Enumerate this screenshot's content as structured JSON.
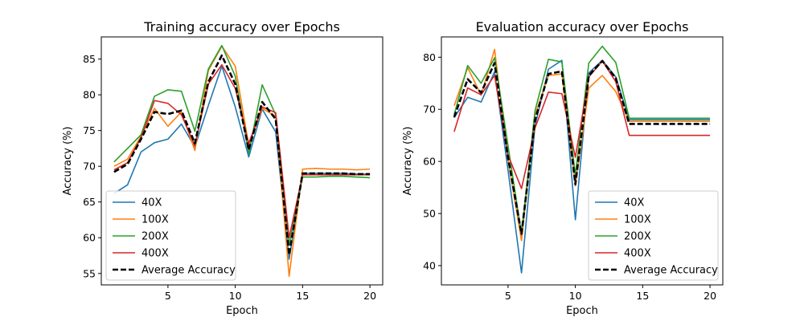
{
  "chart_data": [
    {
      "type": "line",
      "title": "Training accuracy over Epochs",
      "xlabel": "Epoch",
      "ylabel": "Accuracy (%)",
      "xlim": [
        0.05,
        20.95
      ],
      "ylim": [
        53.4,
        88.1
      ],
      "xticks": [
        5,
        10,
        15,
        20
      ],
      "yticks": [
        55,
        60,
        65,
        70,
        75,
        80,
        85
      ],
      "grid": false,
      "legend": "lower-left",
      "x": [
        1,
        2,
        3,
        4,
        5,
        6,
        7,
        8,
        9,
        10,
        11,
        12,
        13,
        14,
        15,
        16,
        17,
        18,
        19,
        20
      ],
      "series": [
        {
          "name": "40X",
          "color": "#1f77b4",
          "dashed": false,
          "values": [
            66.2,
            67.4,
            72.0,
            73.3,
            73.8,
            75.9,
            72.7,
            78.5,
            84.0,
            78.3,
            71.3,
            78.0,
            74.8,
            57.0,
            69.0,
            69.0,
            69.0,
            69.0,
            68.9,
            68.9
          ]
        },
        {
          "name": "100X",
          "color": "#ff7f0e",
          "dashed": false,
          "values": [
            70.0,
            71.0,
            74.2,
            78.1,
            75.6,
            77.6,
            72.2,
            83.4,
            86.8,
            84.0,
            72.9,
            78.1,
            77.0,
            54.6,
            69.6,
            69.7,
            69.6,
            69.6,
            69.5,
            69.6
          ]
        },
        {
          "name": "200X",
          "color": "#2ca02c",
          "dashed": false,
          "values": [
            70.6,
            72.5,
            74.4,
            79.8,
            80.7,
            80.5,
            74.9,
            83.6,
            86.9,
            82.6,
            71.8,
            81.4,
            77.2,
            59.0,
            68.5,
            68.5,
            68.6,
            68.6,
            68.5,
            68.4
          ]
        },
        {
          "name": "400X",
          "color": "#d62728",
          "dashed": false,
          "values": [
            69.5,
            70.5,
            74.0,
            79.2,
            78.8,
            77.2,
            72.9,
            81.5,
            84.2,
            80.9,
            73.2,
            78.3,
            77.5,
            60.0,
            68.8,
            68.8,
            68.8,
            68.8,
            68.8,
            68.8
          ]
        },
        {
          "name": "Average Accuracy",
          "color": "#000000",
          "dashed": true,
          "values": [
            69.2,
            70.3,
            73.8,
            77.6,
            77.3,
            77.8,
            73.2,
            81.8,
            85.5,
            81.5,
            72.3,
            79.0,
            76.6,
            57.6,
            69.0,
            69.0,
            69.0,
            69.0,
            68.9,
            68.9
          ]
        }
      ]
    },
    {
      "type": "line",
      "title": "Evaluation accuracy over Epochs",
      "xlabel": "Epoch",
      "ylabel": "Accuracy (%)",
      "xlim": [
        0.05,
        20.95
      ],
      "ylim": [
        36.3,
        83.9
      ],
      "xticks": [
        5,
        10,
        15,
        20
      ],
      "yticks": [
        40,
        50,
        60,
        70,
        80
      ],
      "grid": false,
      "legend": "lower-right",
      "x": [
        1,
        2,
        3,
        4,
        5,
        6,
        7,
        8,
        9,
        10,
        11,
        12,
        13,
        14,
        15,
        16,
        17,
        18,
        19,
        20
      ],
      "series": [
        {
          "name": "40X",
          "color": "#1f77b4",
          "dashed": false,
          "values": [
            68.4,
            72.3,
            71.4,
            77.2,
            58.3,
            38.6,
            66.8,
            77.7,
            79.4,
            48.8,
            77.0,
            79.4,
            76.2,
            68.0,
            68.0,
            68.0,
            68.0,
            68.0,
            68.0,
            68.0
          ]
        },
        {
          "name": "100X",
          "color": "#ff7f0e",
          "dashed": false,
          "values": [
            70.7,
            78.0,
            72.7,
            81.5,
            60.4,
            44.8,
            68.9,
            76.5,
            76.8,
            55.3,
            74.1,
            76.5,
            73.4,
            67.7,
            67.7,
            67.7,
            67.7,
            67.7,
            67.7,
            67.7
          ]
        },
        {
          "name": "200X",
          "color": "#2ca02c",
          "dashed": false,
          "values": [
            69.0,
            78.4,
            75.0,
            79.9,
            63.0,
            46.0,
            69.7,
            79.6,
            79.1,
            57.4,
            78.9,
            82.1,
            79.0,
            68.3,
            68.3,
            68.3,
            68.3,
            68.3,
            68.3,
            68.3
          ]
        },
        {
          "name": "400X",
          "color": "#d62728",
          "dashed": false,
          "values": [
            65.7,
            74.1,
            72.8,
            76.5,
            61.2,
            54.8,
            66.4,
            73.3,
            73.0,
            60.8,
            76.2,
            79.3,
            75.3,
            65.0,
            65.0,
            65.0,
            65.0,
            65.0,
            65.0,
            65.0
          ]
        },
        {
          "name": "Average Accuracy",
          "color": "#000000",
          "dashed": true,
          "values": [
            68.5,
            75.8,
            73.2,
            78.9,
            60.7,
            46.1,
            67.9,
            76.8,
            77.3,
            55.6,
            76.5,
            79.3,
            76.0,
            67.2,
            67.2,
            67.2,
            67.2,
            67.2,
            67.2,
            67.2
          ]
        }
      ]
    }
  ]
}
